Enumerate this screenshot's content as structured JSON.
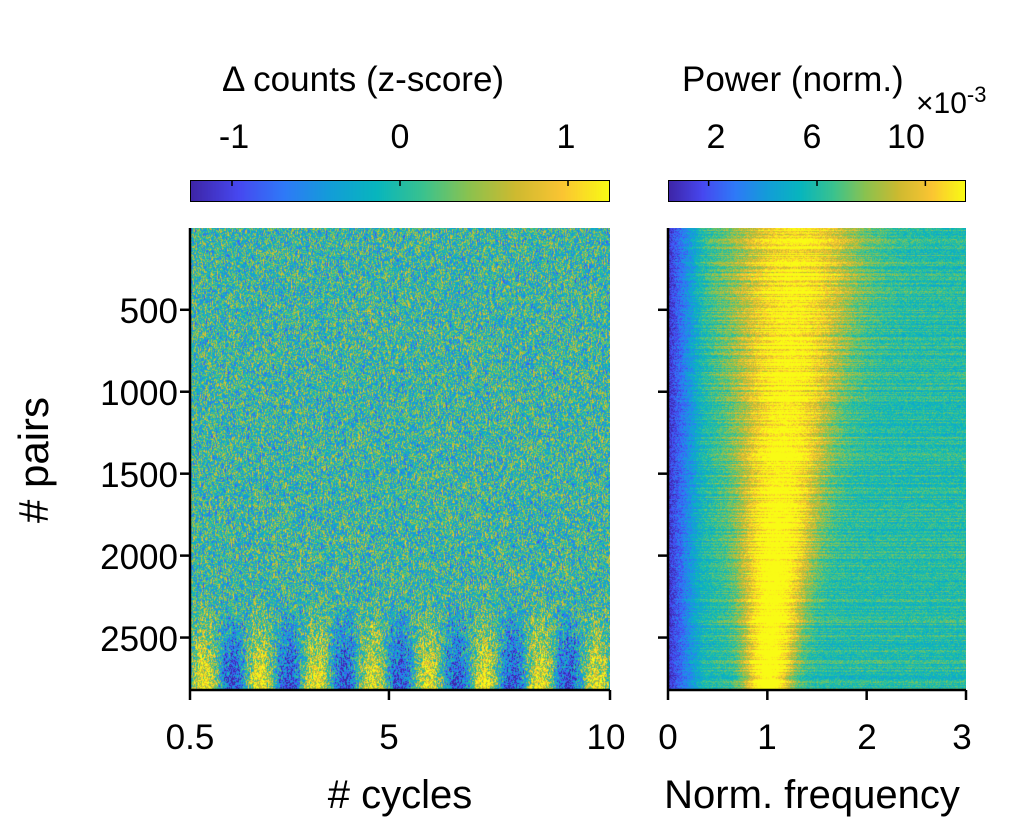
{
  "chart_data": [
    {
      "type": "heatmap",
      "xlabel": "# cycles",
      "ylabel": "# pairs",
      "xticks": [
        "0.5",
        "5",
        "10"
      ],
      "xtick_values": [
        0.5,
        5,
        10
      ],
      "xlim": [
        0.5,
        10
      ],
      "yticks": [
        "500",
        "1000",
        "1500",
        "2000",
        "2500"
      ],
      "ytick_values": [
        500,
        1000,
        1500,
        2000,
        2500
      ],
      "ylim": [
        1,
        2820
      ],
      "colorbar": {
        "title": "Δ counts (z-score)",
        "ticks": [
          "-1",
          "0",
          "1"
        ],
        "tick_values": [
          -1,
          0,
          1
        ],
        "range": [
          -1.25,
          1.25
        ],
        "position": "top"
      },
      "colormap": [
        "#3e26a8",
        "#4748f0",
        "#2f7af8",
        "#139ed8",
        "#08b6be",
        "#3bc28f",
        "#8cc24f",
        "#cfba30",
        "#fbc533",
        "#f9fb15"
      ]
    },
    {
      "type": "heatmap",
      "xlabel": "Norm. frequency",
      "xticks": [
        "0",
        "1",
        "2",
        "3"
      ],
      "xtick_values": [
        0,
        1,
        2,
        3
      ],
      "xlim": [
        0,
        3
      ],
      "ytick_values": [
        500,
        1000,
        1500,
        2000,
        2500
      ],
      "ylim": [
        1,
        2820
      ],
      "peak_frequency": 1,
      "colorbar": {
        "title": "Power (norm.)",
        "ticks": [
          "2",
          "6",
          "10"
        ],
        "tick_values": [
          2,
          6,
          10
        ],
        "range": [
          0.5,
          11.5
        ],
        "exponent_label": "×10",
        "exponent_power": "-3",
        "position": "top"
      },
      "colormap": [
        "#3e26a8",
        "#4748f0",
        "#2f7af8",
        "#139ed8",
        "#08b6be",
        "#3bc28f",
        "#8cc24f",
        "#cfba30",
        "#fbc533",
        "#f9fb15"
      ]
    }
  ]
}
